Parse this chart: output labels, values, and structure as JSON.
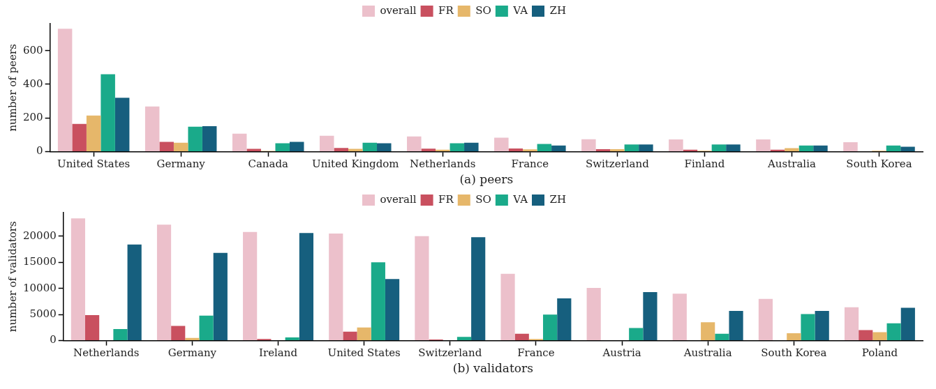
{
  "chart_data": [
    {
      "type": "bar",
      "xlabel": "(a) peers",
      "ylabel": "number of peers",
      "categories": [
        "United States",
        "Germany",
        "Canada",
        "United Kingdom",
        "Netherlands",
        "France",
        "Switzerland",
        "Finland",
        "Australia",
        "South Korea"
      ],
      "ylim": [
        0,
        760
      ],
      "yticks": [
        0,
        200,
        400,
        600
      ],
      "grid": false,
      "legend": "top",
      "series": [
        {
          "name": "overall",
          "color": "#ecc0cb",
          "values": [
            730,
            268,
            107,
            95,
            90,
            83,
            74,
            73,
            73,
            56
          ]
        },
        {
          "name": "FR",
          "color": "#c9505f",
          "values": [
            165,
            58,
            17,
            22,
            18,
            19,
            15,
            12,
            12,
            2
          ]
        },
        {
          "name": "SO",
          "color": "#e6b76a",
          "values": [
            215,
            53,
            5,
            17,
            12,
            14,
            15,
            6,
            21,
            6
          ]
        },
        {
          "name": "VA",
          "color": "#1aaa8a",
          "values": [
            460,
            148,
            50,
            53,
            50,
            46,
            43,
            43,
            37,
            37
          ]
        },
        {
          "name": "ZH",
          "color": "#165f7e",
          "values": [
            320,
            152,
            58,
            50,
            53,
            37,
            43,
            43,
            37,
            29
          ]
        }
      ]
    },
    {
      "type": "bar",
      "xlabel": "(b) validators",
      "ylabel": "number of validators",
      "categories": [
        "Netherlands",
        "Germany",
        "Ireland",
        "United States",
        "Switzerland",
        "France",
        "Austria",
        "Australia",
        "South Korea",
        "Poland"
      ],
      "ylim": [
        0,
        24500
      ],
      "yticks": [
        0,
        5000,
        10000,
        15000,
        20000
      ],
      "grid": false,
      "legend": "top",
      "series": [
        {
          "name": "overall",
          "color": "#ecc0cb",
          "values": [
            23400,
            22200,
            20800,
            20500,
            20000,
            12800,
            10100,
            9000,
            8000,
            6400
          ]
        },
        {
          "name": "FR",
          "color": "#c9505f",
          "values": [
            4900,
            2800,
            300,
            1700,
            200,
            1300,
            0,
            0,
            0,
            2000
          ]
        },
        {
          "name": "SO",
          "color": "#e6b76a",
          "values": [
            0,
            500,
            0,
            2500,
            0,
            300,
            0,
            3500,
            1400,
            1600
          ]
        },
        {
          "name": "VA",
          "color": "#1aaa8a",
          "values": [
            2200,
            4800,
            600,
            15000,
            700,
            5000,
            2400,
            1300,
            5100,
            3300
          ]
        },
        {
          "name": "ZH",
          "color": "#165f7e",
          "values": [
            18400,
            16800,
            20600,
            11800,
            19800,
            8100,
            9300,
            5700,
            5700,
            6300
          ]
        }
      ]
    }
  ]
}
